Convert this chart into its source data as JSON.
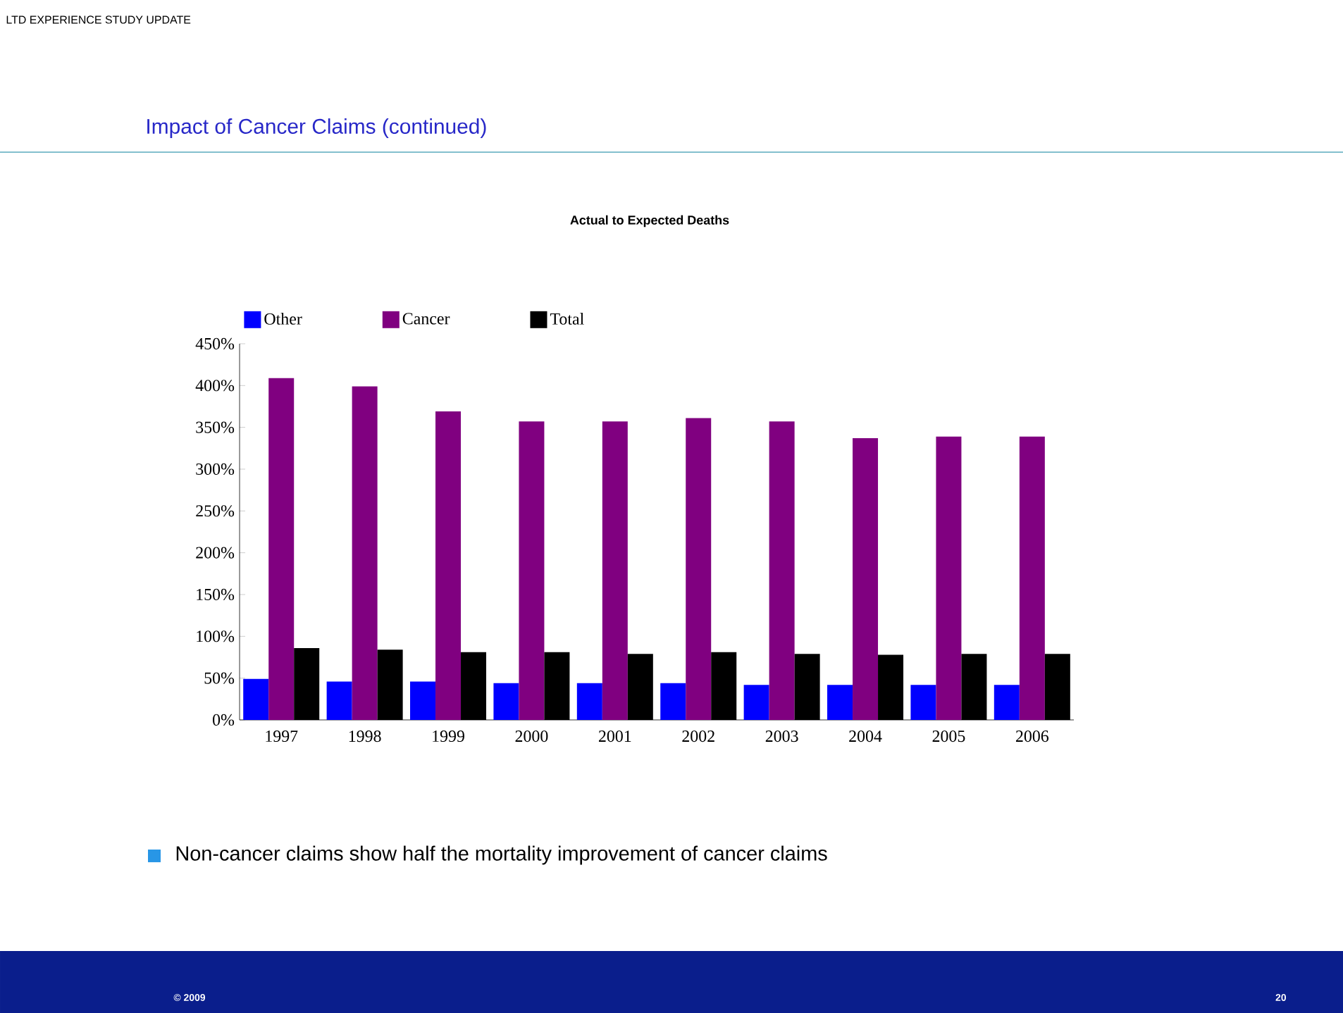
{
  "chart_data": {
    "type": "bar",
    "title": "Actual to Expected Deaths",
    "annotations": [
      "LTD EXPERIENCE STUDY UPDATE",
      "Impact of Cancer Claims (continued)",
      "Non-cancer claims show half the mortality improvement of cancer claims",
      "© 2009",
      "20"
    ],
    "categories": [
      "1997",
      "1998",
      "1999",
      "2000",
      "2001",
      "2002",
      "2003",
      "2004",
      "2005",
      "2006"
    ],
    "series": [
      {
        "name": "Other",
        "color": "#0000ff",
        "values": [
          49,
          46,
          46,
          44,
          44,
          44,
          42,
          42,
          42,
          42
        ]
      },
      {
        "name": "Cancer",
        "color": "#800080",
        "values": [
          409,
          399,
          369,
          357,
          357,
          361,
          357,
          337,
          339,
          339
        ]
      },
      {
        "name": "Total",
        "color": "#000000",
        "values": [
          86,
          84,
          81,
          81,
          79,
          81,
          79,
          78,
          79,
          79
        ]
      }
    ],
    "ylim": [
      0,
      450
    ],
    "yticks": [
      {
        "value": 0,
        "label": "0%"
      },
      {
        "value": 50,
        "label": "50%"
      },
      {
        "value": 100,
        "label": "100%"
      },
      {
        "value": 150,
        "label": "150%"
      },
      {
        "value": 200,
        "label": "200%"
      },
      {
        "value": 250,
        "label": "250%"
      },
      {
        "value": 300,
        "label": "300%"
      },
      {
        "value": 350,
        "label": "350%"
      },
      {
        "value": 400,
        "label": "400%"
      },
      {
        "value": 450,
        "label": "450%"
      }
    ],
    "legend": "top",
    "grid": false
  }
}
